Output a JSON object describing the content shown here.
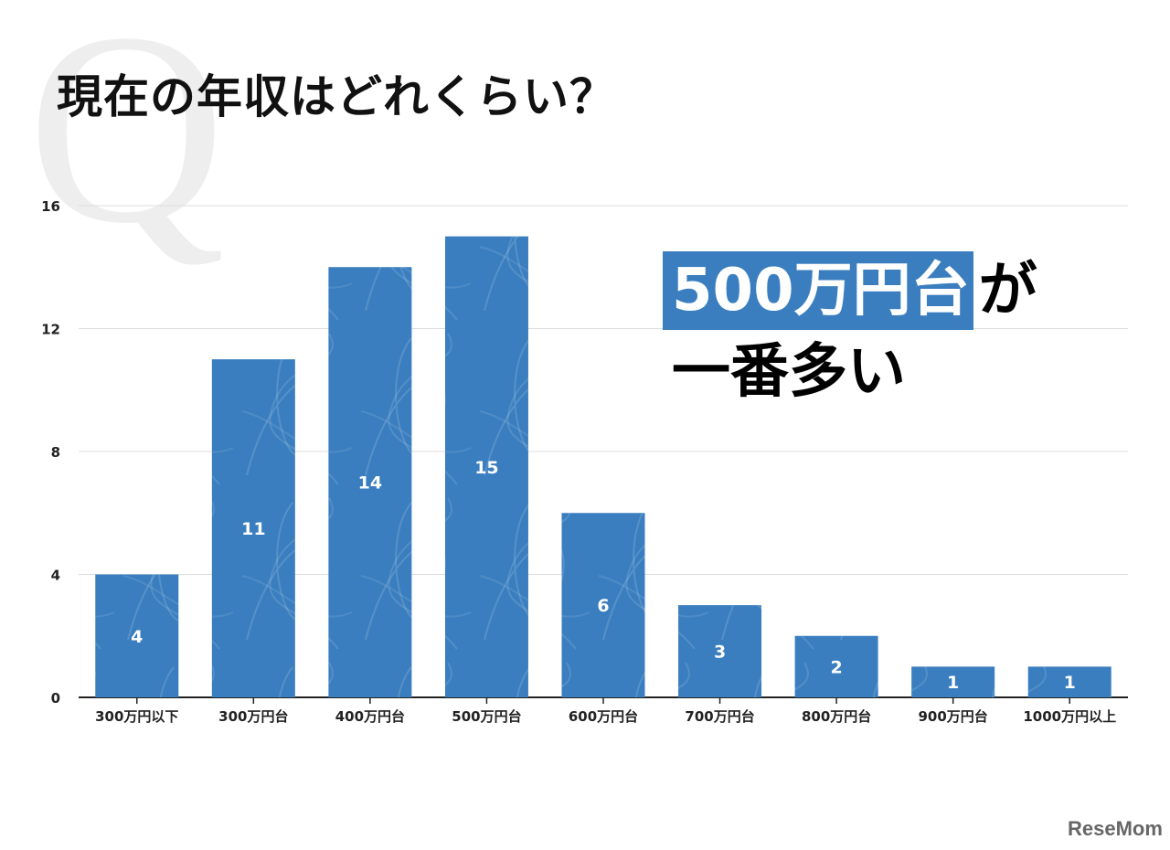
{
  "title": "現在の年収はどれくらい？",
  "q_mark": "Q",
  "callout": {
    "highlight": "500万円台",
    "rest": "が",
    "line2": "一番多い"
  },
  "logo": "ReseMom",
  "colors": {
    "bar": "#3a7ebf",
    "highlight": "#3a7ebf"
  },
  "chart_data": {
    "type": "bar",
    "categories": [
      "300万円以下",
      "300万円台",
      "400万円台",
      "500万円台",
      "600万円台",
      "700万円台",
      "800万円台",
      "900万円台",
      "1000万円以上"
    ],
    "values": [
      4,
      11,
      14,
      15,
      6,
      3,
      2,
      1,
      1
    ],
    "title": "現在の年収はどれくらい？",
    "xlabel": "",
    "ylabel": "",
    "ylim": [
      0,
      16
    ],
    "yticks": [
      0,
      4,
      8,
      12,
      16
    ],
    "grid": true,
    "data_labels": true
  }
}
